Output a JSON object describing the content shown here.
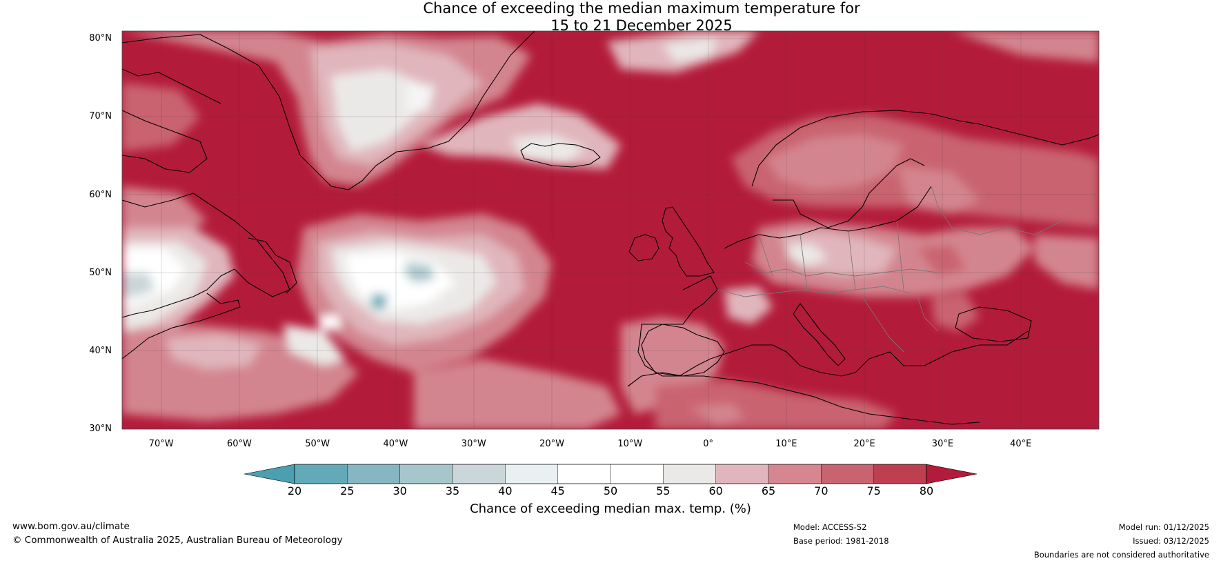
{
  "title": {
    "line1": "Chance of exceeding the median maximum temperature for",
    "line2": "15 to 21 December 2025"
  },
  "map": {
    "extent": {
      "lon_min": -75,
      "lon_max": 50,
      "lat_min": 30,
      "lat_max": 81
    },
    "lat_ticks": [
      {
        "value": 30,
        "label": "30°N"
      },
      {
        "value": 40,
        "label": "40°N"
      },
      {
        "value": 50,
        "label": "50°N"
      },
      {
        "value": 60,
        "label": "60°N"
      },
      {
        "value": 70,
        "label": "70°N"
      },
      {
        "value": 80,
        "label": "80°N"
      }
    ],
    "lon_ticks": [
      {
        "value": -70,
        "label": "70°W"
      },
      {
        "value": -60,
        "label": "60°W"
      },
      {
        "value": -50,
        "label": "50°W"
      },
      {
        "value": -40,
        "label": "40°W"
      },
      {
        "value": -30,
        "label": "30°W"
      },
      {
        "value": -20,
        "label": "20°W"
      },
      {
        "value": -10,
        "label": "10°W"
      },
      {
        "value": 0,
        "label": "0°"
      },
      {
        "value": 10,
        "label": "10°E"
      },
      {
        "value": 20,
        "label": "20°E"
      },
      {
        "value": 30,
        "label": "30°E"
      },
      {
        "value": 40,
        "label": "40°E"
      }
    ]
  },
  "colorbar": {
    "title": "Chance of exceeding median max. temp. (%)",
    "ticks": [
      "20",
      "25",
      "30",
      "35",
      "40",
      "45",
      "50",
      "55",
      "60",
      "65",
      "70",
      "75",
      "80"
    ],
    "under_color": "#4aa0b0",
    "over_color": "#b31b3a",
    "colors": [
      "#63aab9",
      "#85b6c2",
      "#a7c6cc",
      "#cbd6da",
      "#e9f0f1",
      "#ffffff",
      "#ffffff",
      "#ebe9e7",
      "#e0b6bc",
      "#d58690",
      "#c9636f",
      "#bd3f50"
    ]
  },
  "footer": {
    "url": "www.bom.gov.au/climate",
    "copyright": "© Commonwealth of Australia 2025, Australian Bureau of Meteorology",
    "model": "Model: ACCESS-S2",
    "base_period": "Base period: 1981-2018",
    "model_run": "Model run: 01/12/2025",
    "issued": "Issued: 03/12/2025",
    "disclaimer": "Boundaries are not considered authoritative"
  }
}
